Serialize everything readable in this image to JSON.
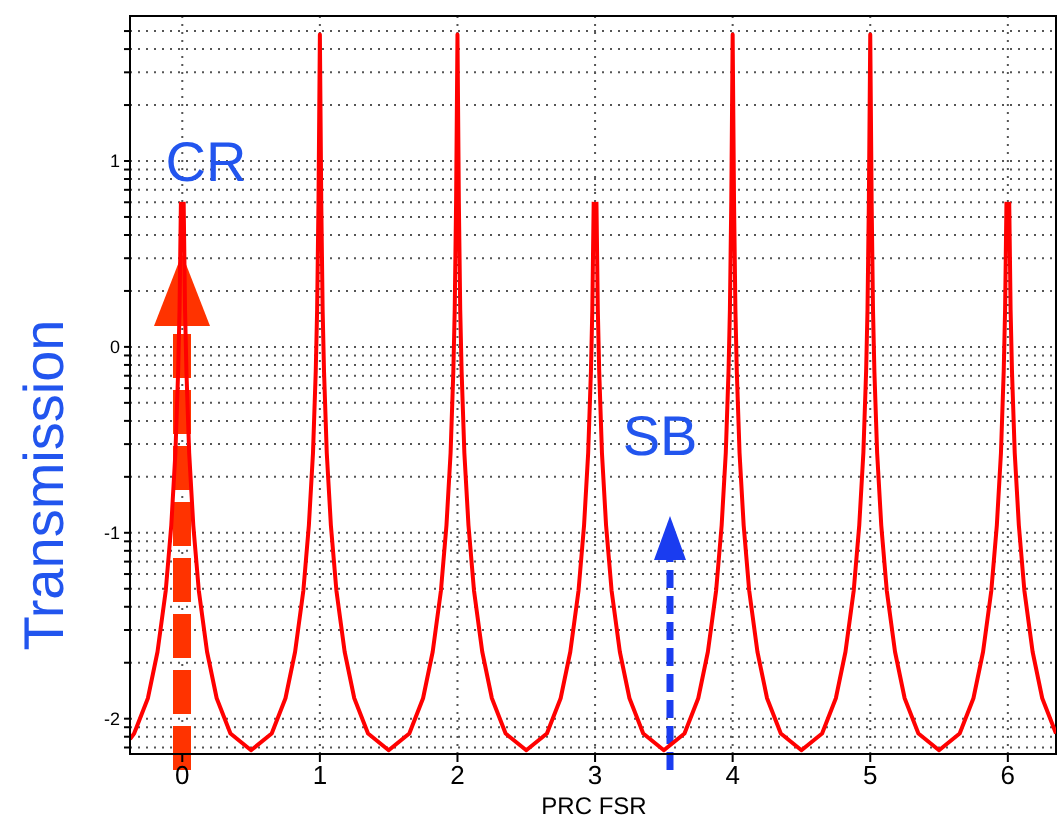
{
  "chart_data": {
    "type": "line",
    "xlabel": "PRC FSR",
    "ylabel": "Transmission",
    "grid": true,
    "marker": "none",
    "line_style": "solid",
    "xlim": [
      -0.38,
      6.35
    ],
    "xticks": [
      0,
      1,
      2,
      3,
      4,
      5,
      6
    ],
    "ylim": [
      -2.19,
      1.78
    ],
    "yticks": [
      {
        "value": -2.155,
        "label": null
      },
      {
        "value": -2.097,
        "label": null
      },
      {
        "value": -2.046,
        "label": null
      },
      -2,
      {
        "value": -1.699,
        "label": null
      },
      {
        "value": -1.523,
        "label": null
      },
      {
        "value": -1.398,
        "label": null
      },
      {
        "value": -1.301,
        "label": null
      },
      {
        "value": -1.222,
        "label": null
      },
      {
        "value": -1.155,
        "label": null
      },
      {
        "value": -1.097,
        "label": null
      },
      {
        "value": -1.046,
        "label": null
      },
      -1,
      {
        "value": -0.699,
        "label": null
      },
      {
        "value": -0.523,
        "label": null
      },
      {
        "value": -0.398,
        "label": null
      },
      {
        "value": -0.301,
        "label": null
      },
      {
        "value": -0.222,
        "label": null
      },
      {
        "value": -0.155,
        "label": null
      },
      {
        "value": -0.097,
        "label": null
      },
      {
        "value": -0.046,
        "label": null
      },
      0,
      {
        "value": 0.301,
        "label": null
      },
      {
        "value": 0.477,
        "label": null
      },
      {
        "value": 0.602,
        "label": null
      },
      {
        "value": 0.699,
        "label": null
      },
      {
        "value": 0.778,
        "label": null
      },
      {
        "value": 0.845,
        "label": null
      },
      {
        "value": 0.903,
        "label": null
      },
      {
        "value": 0.954,
        "label": null
      },
      1,
      {
        "value": 1.301,
        "label": null
      },
      {
        "value": 1.477,
        "label": null
      },
      {
        "value": 1.602,
        "label": null
      },
      {
        "value": 1.699,
        "label": null
      }
    ],
    "annotations": [
      "CR",
      "SB"
    ],
    "series": [
      {
        "color": "#ff0000",
        "x": [
          -0.38,
          -0.35,
          -0.25,
          -0.18,
          -0.12,
          -0.08,
          -0.05,
          -0.03,
          -0.02,
          -0.01,
          0,
          0.01,
          0.02,
          0.03,
          0.05,
          0.08,
          0.12,
          0.18,
          0.25,
          0.35,
          0.5,
          0.65,
          0.75,
          0.82,
          0.88,
          0.92,
          0.95,
          0.97,
          0.98,
          0.99,
          1,
          1.01,
          1.02,
          1.03,
          1.05,
          1.08,
          1.12,
          1.18,
          1.25,
          1.35,
          1.5,
          1.65,
          1.75,
          1.82,
          1.88,
          1.92,
          1.95,
          1.97,
          1.98,
          1.99,
          2,
          2.01,
          2.02,
          2.03,
          2.05,
          2.08,
          2.12,
          2.18,
          2.25,
          2.35,
          2.5,
          2.65,
          2.75,
          2.82,
          2.88,
          2.92,
          2.95,
          2.97,
          2.98,
          2.99,
          3,
          3.01,
          3.02,
          3.03,
          3.05,
          3.08,
          3.12,
          3.18,
          3.25,
          3.35,
          3.5,
          3.65,
          3.75,
          3.82,
          3.88,
          3.92,
          3.95,
          3.97,
          3.98,
          3.99,
          4,
          4.01,
          4.02,
          4.03,
          4.05,
          4.08,
          4.12,
          4.18,
          4.25,
          4.35,
          4.5,
          4.65,
          4.75,
          4.82,
          4.88,
          4.92,
          4.95,
          4.97,
          4.98,
          4.99,
          5,
          5.01,
          5.02,
          5.03,
          5.05,
          5.08,
          5.12,
          5.18,
          5.25,
          5.35,
          5.5,
          5.65,
          5.75,
          5.82,
          5.88,
          5.92,
          5.95,
          5.97,
          5.98,
          5.99,
          6,
          6.01,
          6.02,
          6.03,
          6.05,
          6.08,
          6.12,
          6.18,
          6.25,
          6.35
        ],
        "values": [
          -2.11,
          -2.08,
          -1.89,
          -1.64,
          -1.31,
          -0.96,
          -0.57,
          -0.13,
          0.2,
          0.78,
          null,
          0.78,
          0.2,
          -0.13,
          -0.57,
          -0.96,
          -1.31,
          -1.64,
          -1.89,
          -2.08,
          -2.17,
          -2.08,
          -1.89,
          -1.64,
          -1.31,
          -0.96,
          -0.57,
          -0.13,
          0.2,
          0.78,
          1.68,
          0.78,
          0.2,
          -0.13,
          -0.57,
          -0.96,
          -1.31,
          -1.64,
          -1.89,
          -2.08,
          -2.17,
          -2.08,
          -1.89,
          -1.64,
          -1.31,
          -0.96,
          -0.57,
          -0.13,
          0.2,
          0.78,
          1.68,
          0.78,
          0.2,
          -0.13,
          -0.57,
          -0.96,
          -1.31,
          -1.64,
          -1.89,
          -2.08,
          -2.17,
          -2.08,
          -1.89,
          -1.64,
          -1.31,
          -0.96,
          -0.57,
          -0.13,
          0.2,
          0.78,
          null,
          0.78,
          0.2,
          -0.13,
          -0.57,
          -0.96,
          -1.31,
          -1.64,
          -1.89,
          -2.08,
          -2.17,
          -2.08,
          -1.89,
          -1.64,
          -1.31,
          -0.96,
          -0.57,
          -0.13,
          0.2,
          0.78,
          1.68,
          0.78,
          0.2,
          -0.13,
          -0.57,
          -0.96,
          -1.31,
          -1.64,
          -1.89,
          -2.08,
          -2.17,
          -2.08,
          -1.89,
          -1.64,
          -1.31,
          -0.96,
          -0.57,
          -0.13,
          0.2,
          0.78,
          1.68,
          0.78,
          0.2,
          -0.13,
          -0.57,
          -0.96,
          -1.31,
          -1.64,
          -1.89,
          -2.08,
          -2.17,
          -2.08,
          -1.89,
          -1.64,
          -1.31,
          -0.96,
          -0.57,
          -0.13,
          0.2,
          0.78,
          null,
          0.78,
          0.2,
          -0.13,
          -0.57,
          -0.96,
          -1.31,
          -1.64,
          -1.89,
          -2.08
        ]
      }
    ]
  }
}
